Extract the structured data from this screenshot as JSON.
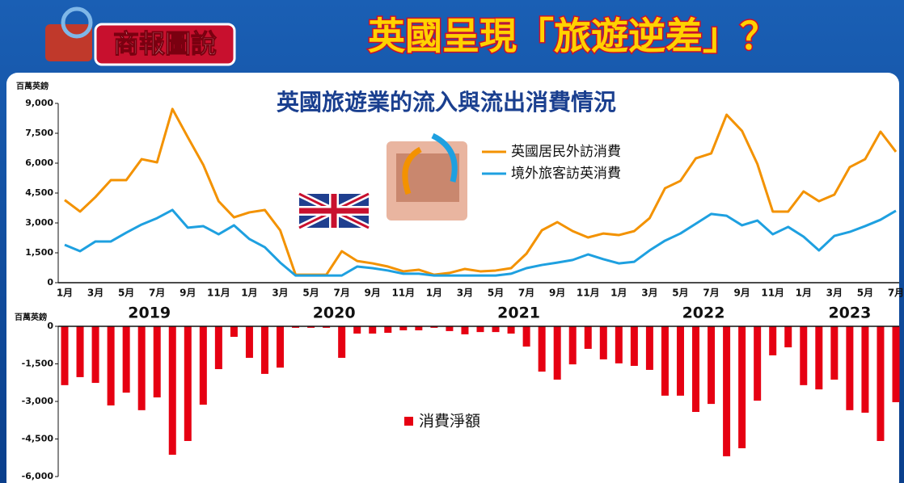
{
  "header": {
    "badge": "商報圖說",
    "title": "英國呈現「旅遊逆差」？"
  },
  "chart_data": [
    {
      "type": "line",
      "title": "英國旅遊業的流入與流出消費情況",
      "y_label": "百萬英鎊",
      "categories": [
        "1月",
        null,
        "3月",
        null,
        "5月",
        null,
        "7月",
        null,
        "9月",
        null,
        "11月",
        null,
        "1月",
        null,
        "3月",
        null,
        "5月",
        null,
        "7月",
        null,
        "9月",
        null,
        "11月",
        null,
        "1月",
        null,
        "3月",
        null,
        "5月",
        null,
        "7月",
        null,
        "9月",
        null,
        "11月",
        null,
        "1月",
        null,
        "3月",
        null,
        "5月",
        null,
        "7月",
        null,
        "9月",
        null,
        "11月",
        null,
        "1月",
        null,
        "3月",
        null,
        "5月",
        null,
        "7月"
      ],
      "year_labels": [
        "2019",
        "2020",
        "2021",
        "2022",
        "2023"
      ],
      "ylim": [
        0,
        9000
      ],
      "yticks": [
        0,
        {
          "value": 1500,
          "label": "1,500"
        },
        {
          "value": 3000,
          "label": "3,000"
        },
        {
          "value": 4500,
          "label": "4,500"
        },
        {
          "value": 6000,
          "label": "6,000"
        },
        {
          "value": 7500,
          "label": "7,500"
        },
        {
          "value": 9000,
          "label": "9,000"
        }
      ],
      "series": [
        {
          "name": "英國居民外訪消費",
          "color": "#f39200",
          "values": [
            4150,
            3570,
            4300,
            5150,
            5150,
            6200,
            6040,
            8720,
            7300,
            5920,
            4090,
            3280,
            3530,
            3650,
            2630,
            400,
            400,
            400,
            1580,
            1090,
            970,
            810,
            570,
            650,
            400,
            490,
            690,
            570,
            610,
            730,
            1460,
            2630,
            3040,
            2590,
            2270,
            2470,
            2390,
            2590,
            3240,
            4740,
            5110,
            6240,
            6490,
            8430,
            7620,
            5960,
            3570,
            3570,
            4580,
            4090,
            4420,
            5800,
            6200,
            7580,
            6570
          ]
        },
        {
          "name": "境外旅客訪英消費",
          "color": "#1ea0e0",
          "values": [
            1900,
            1580,
            2070,
            2070,
            2510,
            2920,
            3240,
            3650,
            2760,
            2840,
            2430,
            2880,
            2190,
            1780,
            1010,
            360,
            360,
            360,
            360,
            810,
            730,
            610,
            450,
            450,
            360,
            360,
            360,
            360,
            360,
            450,
            730,
            890,
            1010,
            1140,
            1420,
            1180,
            970,
            1050,
            1620,
            2110,
            2470,
            2960,
            3450,
            3360,
            2880,
            3120,
            2430,
            2800,
            2310,
            1620,
            2350,
            2550,
            2840,
            3160,
            3610
          ]
        }
      ]
    },
    {
      "type": "bar",
      "y_label": "百萬英鎊",
      "ylim": [
        -6000,
        0
      ],
      "yticks": [
        0,
        {
          "value": -1500,
          "label": "-1,500"
        },
        {
          "value": -3000,
          "label": "-3,000"
        },
        {
          "value": -4500,
          "label": "-4,500"
        },
        {
          "value": -6000,
          "label": "-6,000"
        }
      ],
      "series": [
        {
          "name": "消費淨額",
          "color": "#e60012",
          "values": [
            -2350,
            -2030,
            -2260,
            -3160,
            -2650,
            -3350,
            -2840,
            -5130,
            -4580,
            -3130,
            -1710,
            -420,
            -1260,
            -1900,
            -1650,
            -60,
            -60,
            -60,
            -1260,
            -290,
            -290,
            -260,
            -160,
            -160,
            -60,
            -190,
            -320,
            -230,
            -230,
            -290,
            -810,
            -1810,
            -2130,
            -1520,
            -900,
            -1320,
            -1480,
            -1580,
            -1740,
            -2770,
            -2770,
            -3420,
            -3100,
            -5190,
            -4870,
            -2970,
            -1160,
            -840,
            -2350,
            -2520,
            -2130,
            -3350,
            -3450,
            -4580,
            -3030
          ]
        }
      ]
    }
  ]
}
